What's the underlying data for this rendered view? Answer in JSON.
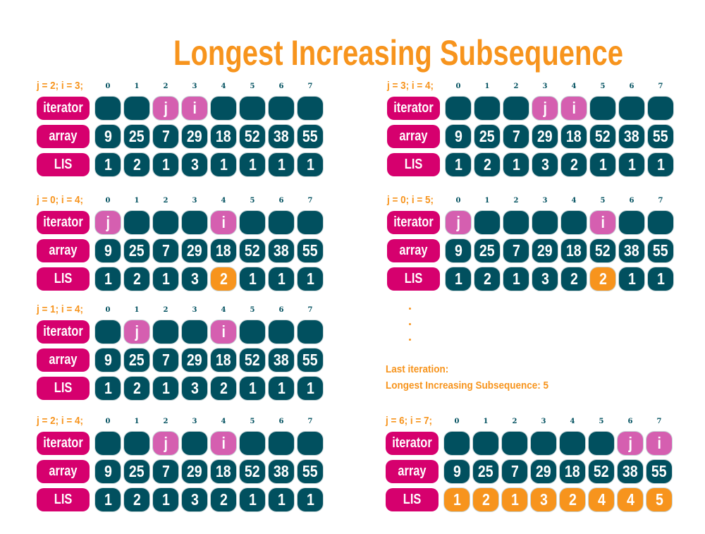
{
  "title": "Longest Increasing Subsequence",
  "row_labels": {
    "iterator": "iterator",
    "array": "array",
    "lis": "LIS"
  },
  "indices": [
    "0",
    "1",
    "2",
    "3",
    "4",
    "5",
    "6",
    "7"
  ],
  "array": [
    "9",
    "25",
    "7",
    "29",
    "18",
    "52",
    "38",
    "55"
  ],
  "colors": {
    "cell": "#01505f",
    "label": "#d6006e",
    "pointer": "#d55fb0",
    "highlight": "#f7941d",
    "text_accent": "#f7941d"
  },
  "panels": [
    {
      "heading": "j = 2; i = 3;",
      "j": 2,
      "i": 3,
      "lis": [
        "1",
        "2",
        "1",
        "3",
        "1",
        "1",
        "1",
        "1"
      ],
      "lis_highlight": []
    },
    {
      "heading": "j = 0; i = 4;",
      "j": 0,
      "i": 4,
      "lis": [
        "1",
        "2",
        "1",
        "3",
        "2",
        "1",
        "1",
        "1"
      ],
      "lis_highlight": [
        4
      ]
    },
    {
      "heading": "j = 1; i = 4;",
      "j": 1,
      "i": 4,
      "lis": [
        "1",
        "2",
        "1",
        "3",
        "2",
        "1",
        "1",
        "1"
      ],
      "lis_highlight": []
    },
    {
      "heading": "j = 2; i = 4;",
      "j": 2,
      "i": 4,
      "lis": [
        "1",
        "2",
        "1",
        "3",
        "2",
        "1",
        "1",
        "1"
      ],
      "lis_highlight": []
    },
    {
      "heading": "j = 3; i = 4;",
      "j": 3,
      "i": 4,
      "lis": [
        "1",
        "2",
        "1",
        "3",
        "2",
        "1",
        "1",
        "1"
      ],
      "lis_highlight": []
    },
    {
      "heading": "j = 0; i = 5;",
      "j": 0,
      "i": 5,
      "lis": [
        "1",
        "2",
        "1",
        "3",
        "2",
        "2",
        "1",
        "1"
      ],
      "lis_highlight": [
        5
      ]
    },
    {
      "heading": "j = 6; i = 7;",
      "j": 6,
      "i": 7,
      "lis": [
        "1",
        "2",
        "1",
        "3",
        "2",
        "4",
        "4",
        "5"
      ],
      "lis_highlight": [
        0,
        1,
        2,
        3,
        4,
        5,
        6,
        7
      ]
    }
  ],
  "pointer_labels": {
    "j": "j",
    "i": "i"
  },
  "notes": {
    "last_iteration": "Last iteration:",
    "result": "Longest Increasing Subsequence: 5"
  }
}
